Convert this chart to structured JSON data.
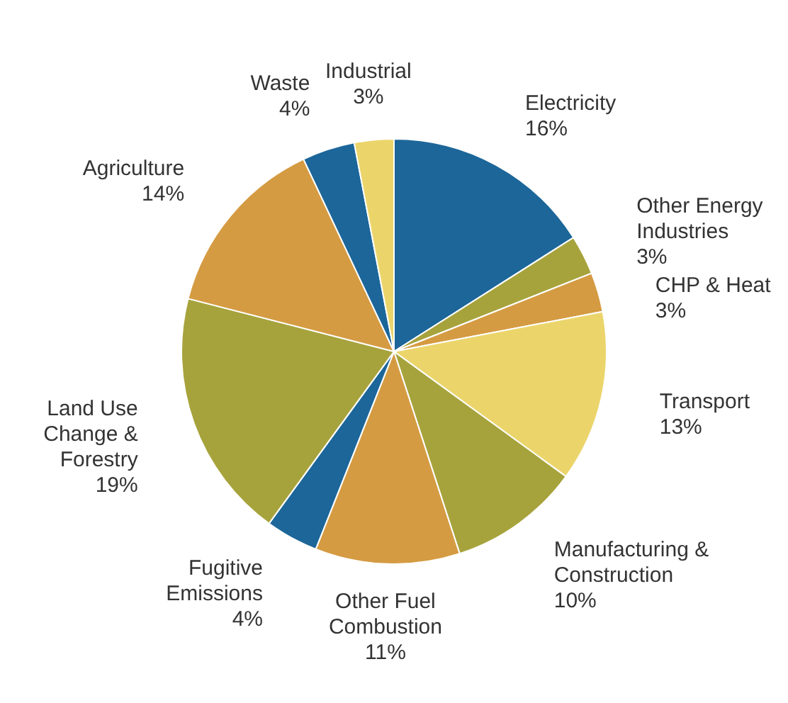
{
  "chart_data": {
    "type": "pie",
    "categories": [
      "Electricity",
      "Other Energy\nIndustries",
      "CHP & Heat",
      "Transport",
      "Manufacturing &\nConstruction",
      "Other Fuel\nCombustion",
      "Fugitive\nEmissions",
      "Land Use\nChange &\nForestry",
      "Agriculture",
      "Waste",
      "Industrial"
    ],
    "values": [
      16,
      3,
      3,
      13,
      10,
      11,
      4,
      19,
      14,
      4,
      3
    ],
    "value_labels": [
      "16%",
      "3%",
      "3%",
      "13%",
      "10%",
      "11%",
      "4%",
      "19%",
      "14%",
      "4%",
      "3%"
    ],
    "colors": [
      "#1c6699",
      "#a7a33c",
      "#d59b42",
      "#ebd56b",
      "#a7a33c",
      "#d59b42",
      "#1c6699",
      "#a7a33c",
      "#d59b42",
      "#1c6699",
      "#ebd56b"
    ]
  }
}
